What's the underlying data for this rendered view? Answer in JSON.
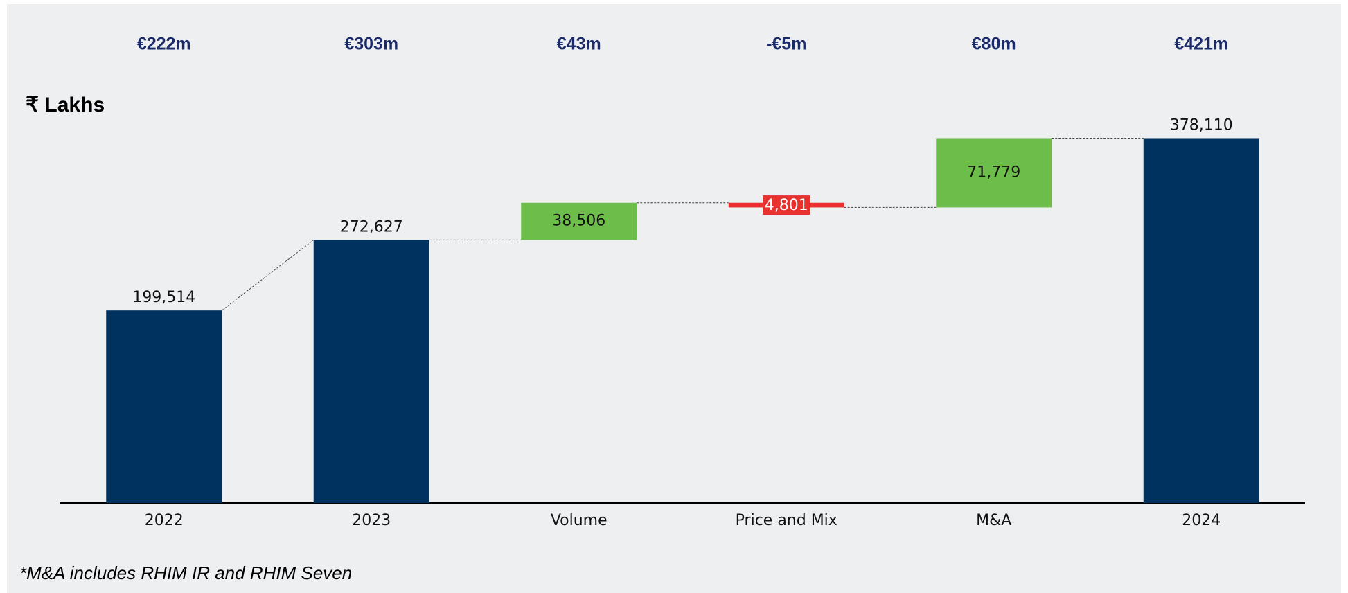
{
  "chart_data": {
    "type": "waterfall",
    "unit_label": "₹ Lakhs",
    "annotations": [
      "€222m",
      "€303m",
      "€43m",
      "-€5m",
      "€80m",
      "€421m"
    ],
    "categories": [
      "2022",
      "2023",
      "Volume",
      "Price and Mix",
      "M&A",
      "2024"
    ],
    "measures": [
      "absolute",
      "absolute",
      "relative",
      "relative",
      "relative",
      "absolute"
    ],
    "values": [
      199514,
      272627,
      38506,
      -4801,
      71779,
      378110
    ],
    "value_labels": [
      "199,514",
      "272,627",
      "38,506",
      "4,801",
      "71,779",
      "378,110"
    ],
    "colors": {
      "total": "#003260",
      "increase": "#6dbd4a",
      "decrease": "#e8302c"
    },
    "ylim": [
      0,
      400000
    ],
    "footnote": "*M&A includes RHIM IR and RHIM Seven"
  }
}
